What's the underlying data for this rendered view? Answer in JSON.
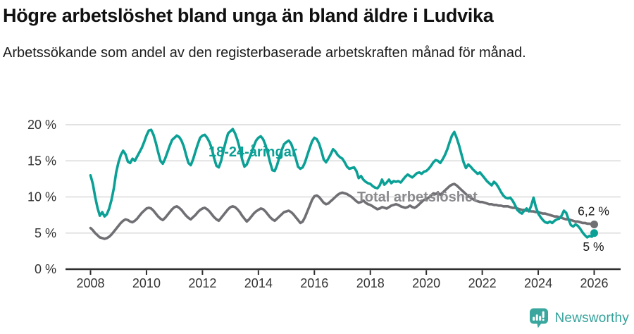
{
  "header": {
    "title": "Högre arbetslöshet bland unga än bland äldre i Ludvika",
    "subtitle": "Arbetssökande som andel av den registerbaserade arbetskraften månad för månad."
  },
  "footer": {
    "logo_text": "Newsworthy"
  },
  "colors": {
    "accent_teal": "#0aa096",
    "line_gray": "#6f6f74",
    "label_gray": "#8a8a8e",
    "grid": "#d9d9d9",
    "axis": "#2e2e2e",
    "text_dark": "#1a1a1a",
    "logo_teal": "#3aa79f"
  },
  "chart_data": {
    "type": "line",
    "title": "Högre arbetslöshet bland unga än bland äldre i Ludvika",
    "subtitle": "Arbetssökande som andel av den registerbaserade arbetskraften månad för månad.",
    "unit": "%",
    "frequency": "monthly",
    "x_start": "2008-01",
    "x_end": "2026-01",
    "grid": "horizontal-only",
    "x_axis": {
      "tick_years": [
        2008,
        2010,
        2012,
        2014,
        2016,
        2018,
        2020,
        2022,
        2024,
        2026
      ],
      "tick_labels": [
        "2008",
        "2010",
        "2012",
        "2014",
        "2016",
        "2018",
        "2020",
        "2022",
        "2024",
        "2026"
      ]
    },
    "y_axis": {
      "range": [
        0,
        20
      ],
      "tick_values": [
        0,
        5,
        10,
        15,
        20
      ],
      "tick_labels": [
        "0 %",
        "5 %",
        "10 %",
        "15 %",
        "20 %"
      ]
    },
    "series": [
      {
        "name": "18-24-åringar",
        "color": "#0aa096",
        "end_label": "5 %",
        "end_value": 5.0,
        "monthly_values": [
          13.0,
          11.8,
          10.0,
          8.5,
          7.4,
          7.9,
          7.3,
          7.6,
          8.4,
          9.6,
          11.2,
          13.4,
          14.8,
          15.8,
          16.4,
          15.9,
          14.9,
          14.7,
          15.3,
          15.0,
          15.6,
          16.2,
          16.8,
          17.6,
          18.5,
          19.2,
          19.3,
          18.6,
          17.5,
          16.2,
          15.0,
          14.6,
          15.3,
          16.2,
          17.1,
          17.9,
          18.2,
          18.5,
          18.3,
          17.8,
          17.0,
          15.8,
          14.7,
          14.4,
          15.2,
          16.3,
          17.3,
          18.2,
          18.5,
          18.6,
          18.2,
          17.6,
          16.7,
          15.4,
          14.3,
          14.1,
          15.0,
          16.4,
          17.7,
          18.8,
          19.1,
          19.4,
          18.8,
          17.9,
          16.7,
          15.2,
          14.2,
          14.5,
          15.3,
          16.1,
          17.0,
          17.8,
          18.2,
          18.4,
          18.0,
          17.2,
          16.1,
          14.8,
          13.7,
          13.6,
          14.4,
          15.5,
          16.5,
          17.3,
          17.6,
          17.8,
          17.4,
          16.5,
          15.4,
          14.2,
          13.9,
          14.1,
          14.8,
          15.8,
          16.8,
          17.7,
          18.2,
          18.0,
          17.4,
          16.4,
          15.2,
          14.8,
          15.3,
          15.9,
          16.6,
          16.3,
          15.8,
          15.5,
          15.3,
          14.8,
          14.2,
          13.9,
          14.0,
          14.1,
          13.6,
          12.6,
          12.9,
          12.4,
          12.1,
          11.9,
          11.8,
          11.5,
          11.3,
          11.2,
          11.6,
          12.4,
          11.7,
          12.0,
          12.4,
          11.9,
          12.2,
          12.1,
          12.2,
          12.0,
          12.4,
          12.8,
          13.1,
          12.9,
          12.7,
          13.0,
          13.3,
          13.4,
          13.2,
          13.5,
          13.6,
          13.9,
          14.3,
          14.8,
          15.1,
          15.0,
          14.7,
          15.2,
          15.8,
          16.6,
          17.6,
          18.5,
          19.0,
          18.2,
          17.2,
          16.0,
          14.8,
          14.0,
          14.5,
          14.2,
          13.8,
          13.5,
          13.2,
          13.4,
          13.0,
          12.6,
          12.2,
          11.9,
          11.6,
          12.1,
          11.8,
          11.3,
          10.7,
          10.2,
          9.9,
          9.8,
          9.9,
          9.5,
          8.9,
          8.2,
          7.9,
          7.7,
          8.1,
          8.4,
          8.0,
          8.8,
          9.9,
          8.6,
          7.7,
          7.2,
          6.8,
          6.5,
          6.4,
          6.6,
          6.4,
          6.7,
          6.9,
          7.0,
          7.4,
          8.1,
          7.8,
          6.9,
          6.1,
          5.9,
          6.2,
          6.0,
          5.6,
          5.1,
          4.7,
          4.4,
          4.6,
          4.5,
          5.0
        ]
      },
      {
        "name": "Total arbetslöshet",
        "color": "#6f6f74",
        "label_color": "#8a8a8e",
        "end_label": "6,2 %",
        "end_value": 6.2,
        "monthly_values": [
          5.7,
          5.4,
          5.0,
          4.7,
          4.4,
          4.3,
          4.2,
          4.3,
          4.5,
          4.8,
          5.2,
          5.6,
          6.0,
          6.4,
          6.7,
          6.9,
          6.8,
          6.6,
          6.5,
          6.7,
          7.0,
          7.4,
          7.8,
          8.1,
          8.4,
          8.5,
          8.4,
          8.1,
          7.7,
          7.3,
          7.0,
          6.8,
          7.1,
          7.5,
          7.9,
          8.3,
          8.6,
          8.7,
          8.5,
          8.2,
          7.8,
          7.4,
          7.1,
          6.9,
          7.2,
          7.5,
          7.9,
          8.2,
          8.4,
          8.5,
          8.3,
          8.0,
          7.6,
          7.2,
          6.9,
          6.7,
          7.1,
          7.5,
          7.9,
          8.3,
          8.6,
          8.7,
          8.6,
          8.3,
          7.9,
          7.4,
          7.0,
          6.6,
          6.9,
          7.3,
          7.7,
          8.0,
          8.2,
          8.4,
          8.3,
          8.0,
          7.6,
          7.2,
          6.9,
          6.7,
          7.0,
          7.3,
          7.6,
          7.9,
          8.0,
          8.1,
          7.9,
          7.6,
          7.2,
          6.8,
          6.4,
          6.6,
          7.2,
          8.0,
          8.8,
          9.6,
          10.1,
          10.2,
          10.0,
          9.6,
          9.2,
          9.0,
          9.1,
          9.4,
          9.7,
          10.0,
          10.3,
          10.5,
          10.6,
          10.5,
          10.4,
          10.2,
          10.0,
          9.7,
          9.4,
          9.2,
          9.3,
          9.5,
          9.2,
          9.0,
          8.9,
          8.7,
          8.5,
          8.3,
          8.4,
          8.6,
          8.5,
          8.4,
          8.6,
          8.8,
          8.9,
          9.0,
          8.9,
          8.7,
          8.6,
          8.5,
          8.6,
          8.8,
          8.6,
          8.5,
          8.7,
          9.0,
          9.3,
          9.6,
          9.7,
          9.9,
          10.2,
          10.5,
          10.4,
          10.6,
          10.3,
          10.6,
          10.9,
          11.2,
          11.5,
          11.7,
          11.8,
          11.6,
          11.3,
          11.0,
          10.7,
          10.4,
          10.1,
          9.9,
          9.7,
          9.5,
          9.4,
          9.3,
          9.3,
          9.2,
          9.1,
          9.0,
          9.0,
          8.9,
          8.9,
          8.8,
          8.8,
          8.7,
          8.7,
          8.7,
          8.6,
          8.5,
          8.5,
          8.4,
          8.3,
          8.2,
          8.2,
          8.1,
          8.1,
          8.0,
          8.0,
          7.9,
          7.9,
          7.8,
          7.7,
          7.7,
          7.6,
          7.5,
          7.4,
          7.3,
          7.3,
          7.2,
          7.1,
          7.0,
          6.9,
          6.9,
          6.8,
          6.7,
          6.6,
          6.6,
          6.5,
          6.4,
          6.4,
          6.3,
          6.3,
          6.2,
          6.2
        ]
      }
    ],
    "legend_position": "inline-labels"
  }
}
